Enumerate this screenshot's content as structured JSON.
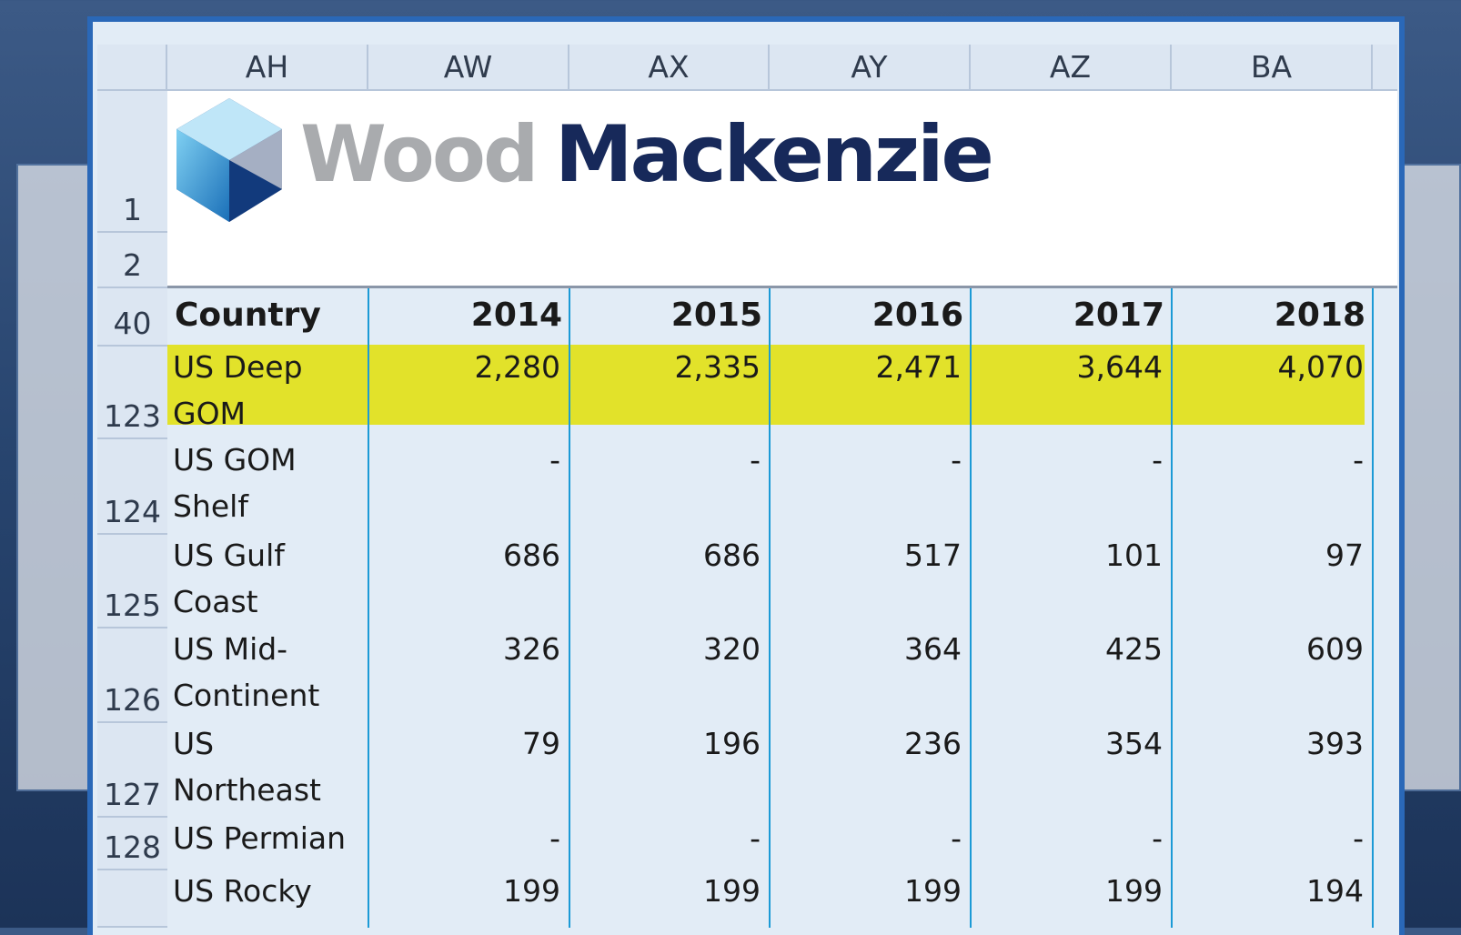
{
  "columns": [
    "AH",
    "AW",
    "AX",
    "AY",
    "AZ",
    "BA"
  ],
  "logo": {
    "word1": "Wood",
    "word2": "Mackenzie"
  },
  "logo_rows": [
    "1",
    "2"
  ],
  "header_row": {
    "num": "40",
    "cells": [
      "Country",
      "2014",
      "2015",
      "2016",
      "2017",
      "2018"
    ]
  },
  "rows": [
    {
      "num": "123",
      "label": [
        "US Deep",
        "GOM"
      ],
      "values": [
        "2,280",
        "2,335",
        "2,471",
        "3,644",
        "4,070"
      ]
    },
    {
      "num": "124",
      "label": [
        "US GOM",
        "Shelf"
      ],
      "values": [
        "-",
        "-",
        "-",
        "-",
        "-"
      ]
    },
    {
      "num": "125",
      "label": [
        "US Gulf",
        "Coast"
      ],
      "values": [
        "686",
        "686",
        "517",
        "101",
        "97"
      ]
    },
    {
      "num": "126",
      "label": [
        "US Mid-",
        "Continent"
      ],
      "values": [
        "326",
        "320",
        "364",
        "425",
        "609"
      ]
    },
    {
      "num": "127",
      "label": [
        "US",
        "Northeast"
      ],
      "values": [
        "79",
        "196",
        "236",
        "354",
        "393"
      ]
    },
    {
      "num": "128",
      "label": [
        "US Permian"
      ],
      "values": [
        "-",
        "-",
        "-",
        "-",
        "-"
      ]
    },
    {
      "label": [
        "US Rocky"
      ],
      "values": [
        "199",
        "199",
        "199",
        "199",
        "194"
      ]
    }
  ]
}
